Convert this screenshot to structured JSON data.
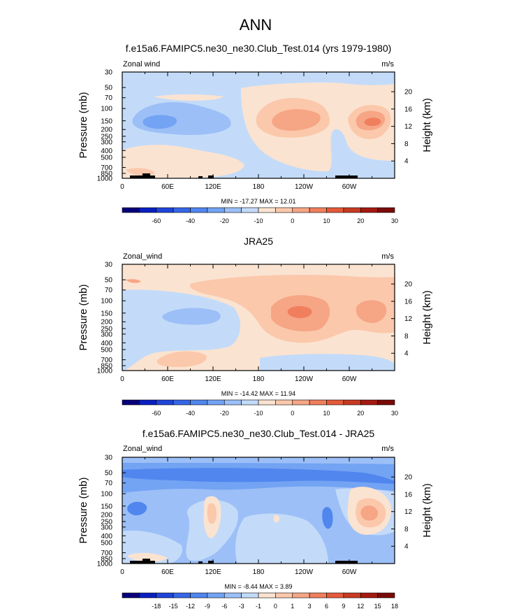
{
  "figure": {
    "title": "ANN"
  },
  "chart_data": [
    {
      "type": "heatmap",
      "title": "f.e15a6.FAMIPC5.ne30_ne30.Club_Test.014 (yrs 1979-1980)",
      "left_label": "Zonal wind",
      "right_label": "m/s",
      "ylabel": "Pressure (mb)",
      "ylabel_right": "Height (km)",
      "x_ticks": [
        "0",
        "60E",
        "120E",
        "180",
        "120W",
        "60W"
      ],
      "y_ticks": [
        "30",
        "50",
        "70",
        "100",
        "150",
        "200",
        "250",
        "300",
        "400",
        "500",
        "700",
        "850",
        "1000"
      ],
      "height_ticks": [
        "20",
        "16",
        "12",
        "8",
        "4"
      ],
      "stats": "MIN = -17.27  MAX =  12.01",
      "levels": [
        -70,
        -60,
        -50,
        -40,
        -30,
        -20,
        -15,
        -10,
        -5,
        0,
        5,
        10,
        15,
        20,
        25,
        30
      ],
      "colorbar_labels": [
        "-60",
        "-40",
        "-20",
        "-10",
        "0",
        "10",
        "20",
        "30"
      ],
      "features": [
        {
          "lon": 70,
          "p": 150,
          "value": -12
        },
        {
          "lon": 205,
          "p": 150,
          "value": 12
        },
        {
          "lon": 305,
          "p": 150,
          "value": 12
        },
        {
          "lon": 120,
          "p": 850,
          "value": 4
        }
      ]
    },
    {
      "type": "heatmap",
      "title": "JRA25",
      "left_label": "Zonal_wind",
      "right_label": "m/s",
      "ylabel": "Pressure (mb)",
      "ylabel_right": "Height (km)",
      "x_ticks": [
        "0",
        "60E",
        "120E",
        "180",
        "120W",
        "60W"
      ],
      "y_ticks": [
        "30",
        "50",
        "70",
        "100",
        "150",
        "200",
        "250",
        "300",
        "400",
        "500",
        "700",
        "850",
        "1000"
      ],
      "height_ticks": [
        "20",
        "16",
        "12",
        "8",
        "4"
      ],
      "stats": "MIN = -14.42  MAX =  11.94",
      "levels": [
        -70,
        -60,
        -50,
        -40,
        -30,
        -20,
        -15,
        -10,
        -5,
        0,
        5,
        10,
        15,
        20,
        25,
        30
      ],
      "colorbar_labels": [
        "-60",
        "-40",
        "-20",
        "-10",
        "0",
        "10",
        "20",
        "30"
      ],
      "features": [
        {
          "lon": 90,
          "p": 150,
          "value": -8
        },
        {
          "lon": 235,
          "p": 150,
          "value": 12
        },
        {
          "lon": 315,
          "p": 150,
          "value": 8
        }
      ]
    },
    {
      "type": "heatmap",
      "title": "f.e15a6.FAMIPC5.ne30_ne30.Club_Test.014 - JRA25",
      "left_label": "Zonal_wind",
      "right_label": "m/s",
      "ylabel": "Pressure (mb)",
      "ylabel_right": "Height (km)",
      "x_ticks": [
        "0",
        "60E",
        "120E",
        "180",
        "120W",
        "60W"
      ],
      "y_ticks": [
        "30",
        "50",
        "70",
        "100",
        "150",
        "200",
        "250",
        "300",
        "400",
        "500",
        "700",
        "850",
        "1000"
      ],
      "height_ticks": [
        "20",
        "16",
        "12",
        "8",
        "4"
      ],
      "stats": "MIN = -8.44  MAX =  3.89",
      "levels": [
        -21,
        -18,
        -15,
        -12,
        -9,
        -6,
        -3,
        -1,
        0,
        1,
        3,
        6,
        9,
        12,
        15,
        18
      ],
      "colorbar_labels": [
        "-18",
        "-15",
        "-12",
        "-9",
        "-6",
        "-3",
        "-1",
        "0",
        "1",
        "3",
        "6",
        "9",
        "12",
        "15",
        "18"
      ],
      "features": [
        {
          "lon": 180,
          "p": 50,
          "value": -8
        },
        {
          "lon": 20,
          "p": 150,
          "value": -7
        },
        {
          "lon": 125,
          "p": 200,
          "value": 2
        },
        {
          "lon": 320,
          "p": 200,
          "value": 3
        },
        {
          "lon": 285,
          "p": 200,
          "value": -6
        }
      ]
    }
  ],
  "colormap": [
    "#08007a",
    "#0a1fc0",
    "#1f45d9",
    "#3567e6",
    "#5086ee",
    "#73a3f3",
    "#9cbff7",
    "#c3dbf9",
    "#fbe3d1",
    "#fbc8ab",
    "#f6a585",
    "#f07f5d",
    "#e45a3a",
    "#c83a21",
    "#a41a10",
    "#7a0a08"
  ]
}
